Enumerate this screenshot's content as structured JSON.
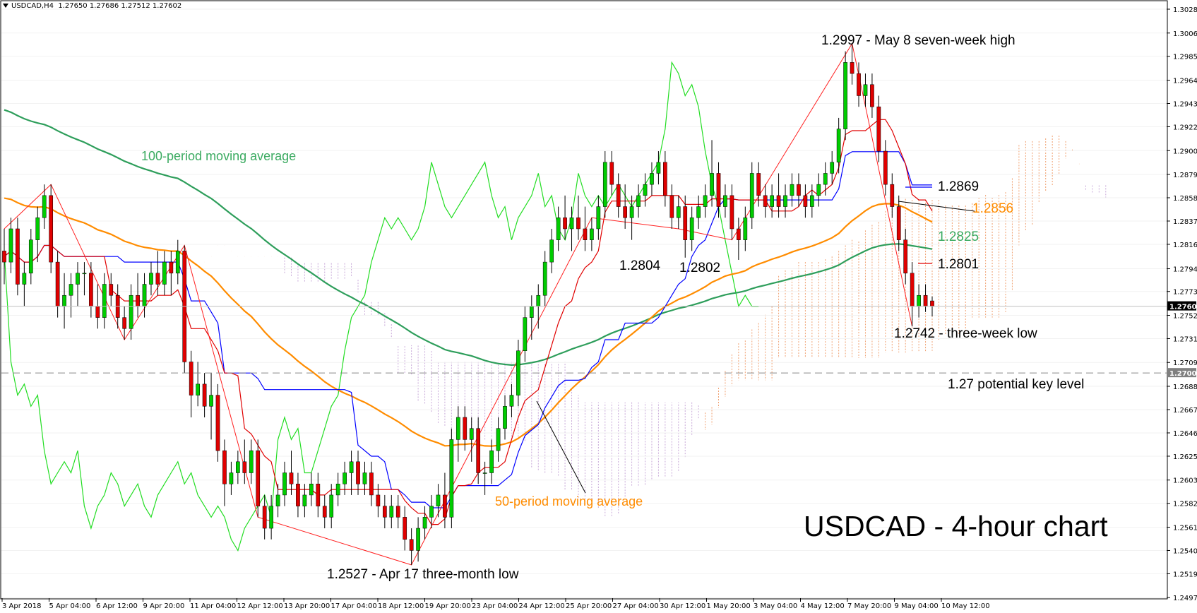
{
  "header": {
    "symbol": "USDCAD,H4",
    "ohlc": "1.27650 1.27686 1.27512 1.27602"
  },
  "chart_data": {
    "type": "candlestick",
    "title": "USDCAD - 4-hour chart",
    "ylim": [
      1.2497,
      1.3035
    ],
    "x_ticks": [
      "3 Apr 2018",
      "5 Apr 04:00",
      "6 Apr 12:00",
      "9 Apr 20:00",
      "11 Apr 04:00",
      "12 Apr 12:00",
      "13 Apr 20:00",
      "17 Apr 04:00",
      "18 Apr 12:00",
      "19 Apr 20:00",
      "23 Apr 04:00",
      "24 Apr 12:00",
      "25 Apr 20:00",
      "27 Apr 04:00",
      "30 Apr 12:00",
      "1 May 20:00",
      "3 May 04:00",
      "4 May 12:00",
      "7 May 20:00",
      "9 May 04:00",
      "10 May 12:00"
    ],
    "y_ticks": [
      "1.30280",
      "1.30065",
      "1.29855",
      "1.29640",
      "1.29430",
      "1.29220",
      "1.29005",
      "1.28790",
      "1.28580",
      "1.28370",
      "1.28160",
      "1.27940",
      "1.27735",
      "1.27520",
      "1.27310",
      "1.27095",
      "1.26880",
      "1.26670",
      "1.26460",
      "1.26250",
      "1.26035",
      "1.25825",
      "1.25610",
      "1.25400",
      "1.25190",
      "1.24975"
    ],
    "current_price_label": "1.27602",
    "key_level_label": "1.27000",
    "key_level": 1.27,
    "current_price": 1.27602,
    "ohlc": [
      [
        1.281,
        1.283,
        1.278,
        1.28
      ],
      [
        1.28,
        1.284,
        1.279,
        1.283
      ],
      [
        1.283,
        1.284,
        1.277,
        1.278
      ],
      [
        1.278,
        1.28,
        1.276,
        1.279
      ],
      [
        1.279,
        1.283,
        1.278,
        1.282
      ],
      [
        1.282,
        1.285,
        1.28,
        1.284
      ],
      [
        1.284,
        1.287,
        1.283,
        1.286
      ],
      [
        1.286,
        1.287,
        1.279,
        1.28
      ],
      [
        1.28,
        1.281,
        1.275,
        1.276
      ],
      [
        1.276,
        1.279,
        1.274,
        1.277
      ],
      [
        1.277,
        1.279,
        1.275,
        1.278
      ],
      [
        1.278,
        1.28,
        1.276,
        1.279
      ],
      [
        1.279,
        1.28,
        1.277,
        1.279
      ],
      [
        1.279,
        1.28,
        1.275,
        1.276
      ],
      [
        1.276,
        1.278,
        1.274,
        1.275
      ],
      [
        1.275,
        1.279,
        1.274,
        1.278
      ],
      [
        1.278,
        1.279,
        1.276,
        1.277
      ],
      [
        1.277,
        1.278,
        1.274,
        1.275
      ],
      [
        1.275,
        1.276,
        1.273,
        1.274
      ],
      [
        1.274,
        1.278,
        1.273,
        1.277
      ],
      [
        1.277,
        1.279,
        1.275,
        1.276
      ],
      [
        1.276,
        1.279,
        1.275,
        1.278
      ],
      [
        1.278,
        1.28,
        1.277,
        1.279
      ],
      [
        1.279,
        1.281,
        1.277,
        1.278
      ],
      [
        1.278,
        1.281,
        1.277,
        1.28
      ],
      [
        1.28,
        1.281,
        1.277,
        1.279
      ],
      [
        1.279,
        1.282,
        1.278,
        1.281
      ],
      [
        1.281,
        1.2815,
        1.27,
        1.271
      ],
      [
        1.271,
        1.272,
        1.266,
        1.268
      ],
      [
        1.268,
        1.271,
        1.267,
        1.269
      ],
      [
        1.269,
        1.27,
        1.266,
        1.267
      ],
      [
        1.267,
        1.27,
        1.264,
        1.268
      ],
      [
        1.268,
        1.269,
        1.262,
        1.263
      ],
      [
        1.263,
        1.264,
        1.258,
        1.26
      ],
      [
        1.26,
        1.262,
        1.259,
        1.261
      ],
      [
        1.261,
        1.263,
        1.26,
        1.262
      ],
      [
        1.262,
        1.264,
        1.26,
        1.261
      ],
      [
        1.261,
        1.264,
        1.26,
        1.263
      ],
      [
        1.263,
        1.264,
        1.257,
        1.258
      ],
      [
        1.258,
        1.259,
        1.255,
        1.256
      ],
      [
        1.256,
        1.259,
        1.255,
        1.258
      ],
      [
        1.258,
        1.26,
        1.257,
        1.259
      ],
      [
        1.259,
        1.262,
        1.258,
        1.261
      ],
      [
        1.261,
        1.263,
        1.259,
        1.26
      ],
      [
        1.26,
        1.261,
        1.257,
        1.258
      ],
      [
        1.258,
        1.26,
        1.257,
        1.259
      ],
      [
        1.259,
        1.261,
        1.258,
        1.26
      ],
      [
        1.26,
        1.261,
        1.257,
        1.258
      ],
      [
        1.258,
        1.259,
        1.256,
        1.257
      ],
      [
        1.257,
        1.26,
        1.256,
        1.259
      ],
      [
        1.259,
        1.261,
        1.258,
        1.26
      ],
      [
        1.26,
        1.262,
        1.259,
        1.261
      ],
      [
        1.261,
        1.263,
        1.259,
        1.262
      ],
      [
        1.262,
        1.263,
        1.259,
        1.26
      ],
      [
        1.26,
        1.262,
        1.259,
        1.261
      ],
      [
        1.261,
        1.262,
        1.258,
        1.259
      ],
      [
        1.259,
        1.26,
        1.257,
        1.258
      ],
      [
        1.258,
        1.259,
        1.256,
        1.257
      ],
      [
        1.257,
        1.259,
        1.256,
        1.258
      ],
      [
        1.258,
        1.259,
        1.256,
        1.257
      ],
      [
        1.257,
        1.258,
        1.254,
        1.255
      ],
      [
        1.255,
        1.256,
        1.2527,
        1.254
      ],
      [
        1.254,
        1.257,
        1.253,
        1.256
      ],
      [
        1.256,
        1.258,
        1.255,
        1.257
      ],
      [
        1.257,
        1.259,
        1.256,
        1.258
      ],
      [
        1.258,
        1.26,
        1.257,
        1.259
      ],
      [
        1.259,
        1.261,
        1.256,
        1.257
      ],
      [
        1.257,
        1.265,
        1.256,
        1.264
      ],
      [
        1.264,
        1.267,
        1.262,
        1.266
      ],
      [
        1.266,
        1.267,
        1.263,
        1.264
      ],
      [
        1.264,
        1.266,
        1.262,
        1.265
      ],
      [
        1.265,
        1.266,
        1.26,
        1.261
      ],
      [
        1.261,
        1.262,
        1.259,
        1.261
      ],
      [
        1.261,
        1.264,
        1.26,
        1.263
      ],
      [
        1.263,
        1.266,
        1.262,
        1.265
      ],
      [
        1.265,
        1.268,
        1.264,
        1.267
      ],
      [
        1.267,
        1.269,
        1.266,
        1.268
      ],
      [
        1.268,
        1.273,
        1.267,
        1.272
      ],
      [
        1.272,
        1.276,
        1.271,
        1.275
      ],
      [
        1.275,
        1.277,
        1.273,
        1.276
      ],
      [
        1.276,
        1.278,
        1.274,
        1.277
      ],
      [
        1.277,
        1.281,
        1.276,
        1.28
      ],
      [
        1.28,
        1.283,
        1.279,
        1.282
      ],
      [
        1.282,
        1.285,
        1.281,
        1.284
      ],
      [
        1.284,
        1.286,
        1.282,
        1.283
      ],
      [
        1.283,
        1.285,
        1.281,
        1.284
      ],
      [
        1.284,
        1.286,
        1.282,
        1.283
      ],
      [
        1.283,
        1.285,
        1.281,
        1.282
      ],
      [
        1.282,
        1.284,
        1.281,
        1.283
      ],
      [
        1.283,
        1.286,
        1.282,
        1.285
      ],
      [
        1.285,
        1.29,
        1.284,
        1.289
      ],
      [
        1.289,
        1.29,
        1.286,
        1.287
      ],
      [
        1.287,
        1.288,
        1.284,
        1.285
      ],
      [
        1.285,
        1.287,
        1.283,
        1.284
      ],
      [
        1.284,
        1.286,
        1.282,
        1.285
      ],
      [
        1.285,
        1.287,
        1.284,
        1.286
      ],
      [
        1.286,
        1.288,
        1.285,
        1.287
      ],
      [
        1.287,
        1.289,
        1.286,
        1.288
      ],
      [
        1.288,
        1.29,
        1.287,
        1.289
      ],
      [
        1.289,
        1.29,
        1.285,
        1.286
      ],
      [
        1.286,
        1.287,
        1.283,
        1.284
      ],
      [
        1.284,
        1.286,
        1.283,
        1.285
      ],
      [
        1.285,
        1.286,
        1.2804,
        1.282
      ],
      [
        1.282,
        1.285,
        1.281,
        1.284
      ],
      [
        1.284,
        1.286,
        1.283,
        1.285
      ],
      [
        1.285,
        1.287,
        1.284,
        1.286
      ],
      [
        1.286,
        1.291,
        1.285,
        1.288
      ],
      [
        1.288,
        1.289,
        1.284,
        1.285
      ],
      [
        1.285,
        1.287,
        1.284,
        1.286
      ],
      [
        1.286,
        1.287,
        1.282,
        1.283
      ],
      [
        1.283,
        1.284,
        1.2802,
        1.282
      ],
      [
        1.282,
        1.285,
        1.281,
        1.284
      ],
      [
        1.284,
        1.289,
        1.283,
        1.288
      ],
      [
        1.288,
        1.289,
        1.285,
        1.286
      ],
      [
        1.286,
        1.287,
        1.284,
        1.285
      ],
      [
        1.285,
        1.287,
        1.284,
        1.286
      ],
      [
        1.286,
        1.288,
        1.284,
        1.285
      ],
      [
        1.285,
        1.287,
        1.284,
        1.286
      ],
      [
        1.286,
        1.288,
        1.285,
        1.287
      ],
      [
        1.287,
        1.288,
        1.285,
        1.286
      ],
      [
        1.286,
        1.287,
        1.284,
        1.285
      ],
      [
        1.285,
        1.287,
        1.284,
        1.286
      ],
      [
        1.286,
        1.288,
        1.285,
        1.287
      ],
      [
        1.287,
        1.289,
        1.286,
        1.288
      ],
      [
        1.288,
        1.29,
        1.287,
        1.289
      ],
      [
        1.289,
        1.293,
        1.288,
        1.292
      ],
      [
        1.292,
        1.299,
        1.291,
        1.298
      ],
      [
        1.298,
        1.2997,
        1.296,
        1.297
      ],
      [
        1.297,
        1.298,
        1.294,
        1.295
      ],
      [
        1.295,
        1.297,
        1.294,
        1.296
      ],
      [
        1.296,
        1.297,
        1.293,
        1.294
      ],
      [
        1.294,
        1.295,
        1.289,
        1.29
      ],
      [
        1.29,
        1.291,
        1.286,
        1.287
      ],
      [
        1.287,
        1.288,
        1.284,
        1.285
      ],
      [
        1.285,
        1.286,
        1.281,
        1.282
      ],
      [
        1.282,
        1.283,
        1.278,
        1.279
      ],
      [
        1.279,
        1.28,
        1.2742,
        1.276
      ],
      [
        1.276,
        1.278,
        1.275,
        1.277
      ],
      [
        1.277,
        1.278,
        1.2755,
        1.276
      ],
      [
        1.2765,
        1.2769,
        1.2751,
        1.276
      ]
    ]
  },
  "annotations": {
    "high": "1.2997 - May 8 seven-week high",
    "ma100": "100-period moving average",
    "ma50": "50-period moving average",
    "low3m": "1.2527 - Apr 17 three-month low",
    "low3w": "1.2742 - three-week low",
    "keylevel": "1.27 potential key level",
    "v1804": "1.2804",
    "v1802": "1.2802",
    "v1869": "1.2869",
    "v1856": "1.2856",
    "v1825": "1.2825",
    "v1801": "1.2801",
    "title": "USDCAD - 4-hour chart"
  },
  "colors": {
    "bull": "#00cc00",
    "bear": "#e00000",
    "ma100": "#2e9e5b",
    "ma50": "#ff8c00",
    "tenkan": "#e00000",
    "kijun": "#0000ff",
    "chikou": "#22dd22",
    "cloud_bull": "#f0a070",
    "cloud_bear": "#c8a8d8",
    "annotation_green": "#3aaa60",
    "annotation_orange": "#ff8c00"
  }
}
